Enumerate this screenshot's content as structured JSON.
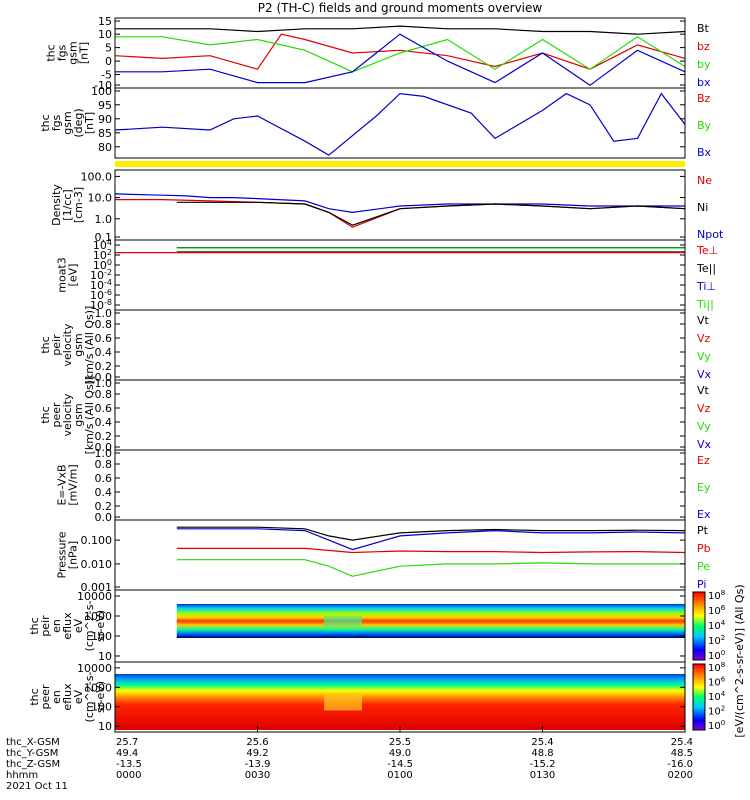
{
  "title": "P2 (TH-C) fields and ground moments overview",
  "colors": {
    "black": "#000000",
    "red": "#e00000",
    "green": "#22dd00",
    "blue": "#0000cc",
    "yellow": "#ffee00"
  },
  "chart_data": [
    {
      "type": "line",
      "ylabel": [
        "thc",
        "fgs",
        "gsm",
        "[nT]"
      ],
      "yticks": [
        15,
        10,
        5,
        0,
        -5,
        -10
      ],
      "ylim": [
        -10,
        16
      ],
      "legend": [
        {
          "name": "Bt",
          "color": "black"
        },
        {
          "name": "bz",
          "color": "red"
        },
        {
          "name": "by",
          "color": "green"
        },
        {
          "name": "bx",
          "color": "blue"
        }
      ],
      "series": [
        {
          "name": "Bt",
          "color": "black",
          "x": [
            0,
            10,
            20,
            30,
            40,
            50,
            60,
            70,
            80,
            90,
            100,
            110,
            120
          ],
          "y": [
            12,
            12,
            12,
            11,
            12,
            12,
            13,
            12,
            12,
            11,
            11,
            10,
            11
          ]
        },
        {
          "name": "bz",
          "color": "red",
          "x": [
            0,
            10,
            20,
            30,
            35,
            40,
            50,
            60,
            70,
            80,
            90,
            100,
            110,
            120
          ],
          "y": [
            2,
            1,
            2,
            -3,
            10,
            8,
            3,
            4,
            2,
            -2,
            3,
            -3,
            6,
            1
          ]
        },
        {
          "name": "by",
          "color": "green",
          "x": [
            0,
            10,
            20,
            30,
            40,
            50,
            60,
            70,
            80,
            90,
            100,
            110,
            120
          ],
          "y": [
            9,
            9,
            6,
            8,
            4,
            -4,
            3,
            8,
            -3,
            8,
            -3,
            9,
            -2
          ]
        },
        {
          "name": "bx",
          "color": "blue",
          "x": [
            0,
            10,
            20,
            30,
            40,
            50,
            60,
            70,
            80,
            90,
            100,
            110,
            120
          ],
          "y": [
            -4,
            -4,
            -3,
            -8,
            -8,
            -4,
            10,
            0,
            -8,
            3,
            -9,
            4,
            -4
          ]
        }
      ]
    },
    {
      "type": "line",
      "ylabel": [
        "thc",
        "fgs",
        "gsm",
        "(deg)",
        "[nT]"
      ],
      "yticks": [
        100,
        95,
        90,
        85,
        80
      ],
      "ylim": [
        76,
        101
      ],
      "legend": [
        {
          "name": "Bz",
          "color": "red"
        },
        {
          "name": "By",
          "color": "green"
        },
        {
          "name": "Bx",
          "color": "blue"
        }
      ],
      "series": [
        {
          "name": "Bx",
          "color": "blue",
          "x": [
            0,
            10,
            20,
            25,
            30,
            40,
            45,
            55,
            60,
            65,
            75,
            80,
            90,
            95,
            100,
            105,
            110,
            115,
            120
          ],
          "y": [
            86,
            87,
            86,
            90,
            91,
            82,
            77,
            91,
            99,
            98,
            92,
            83,
            93,
            99,
            95,
            82,
            83,
            99,
            88
          ]
        }
      ]
    },
    {
      "type": "line",
      "ylabel": [
        "Density",
        "[1/cc]",
        "[cm-3]"
      ],
      "yticks": [
        "100.0",
        "10.0",
        "1.0",
        "0.1"
      ],
      "ylog": true,
      "ylim": [
        0.1,
        200
      ],
      "legend": [
        {
          "name": "Ne",
          "color": "red"
        },
        {
          "name": "Ni",
          "color": "black"
        },
        {
          "name": "Npot",
          "color": "blue"
        }
      ],
      "series": [
        {
          "name": "Npot",
          "color": "blue",
          "x": [
            0,
            10,
            15,
            20,
            25,
            30,
            40,
            45,
            50,
            60,
            70,
            80,
            90,
            100,
            110,
            120
          ],
          "y": [
            15,
            13,
            12,
            10,
            10,
            9,
            7,
            3,
            2,
            4,
            5,
            5,
            5,
            4,
            4,
            4
          ]
        },
        {
          "name": "Ne",
          "color": "red",
          "x": [
            0,
            10,
            20,
            30,
            40,
            45,
            50,
            60,
            70,
            80,
            90,
            100,
            110,
            120
          ],
          "y": [
            8,
            8,
            7,
            6,
            5,
            2,
            0.4,
            3,
            4,
            5,
            4,
            3,
            4,
            3
          ]
        },
        {
          "name": "Ni",
          "color": "black",
          "x": [
            13,
            20,
            30,
            40,
            45,
            50,
            60,
            70,
            80,
            90,
            100,
            110,
            120
          ],
          "y": [
            6,
            6,
            6,
            5,
            2,
            0.5,
            3,
            4,
            5,
            4,
            3,
            4,
            3
          ]
        }
      ]
    },
    {
      "type": "line",
      "ylabel": [
        "moat3",
        "[eV]"
      ],
      "yticks": [
        "10^4",
        "10^2",
        "10^0",
        "10^-2",
        "10^-4",
        "10^-6",
        "10^-8"
      ],
      "ylog": true,
      "ylim": [
        1e-09,
        100000.0
      ],
      "legend": [
        {
          "name": "Te⊥",
          "color": "red"
        },
        {
          "name": "Te||",
          "color": "black"
        },
        {
          "name": "Ti⊥",
          "color": "blue"
        },
        {
          "name": "Ti||",
          "color": "green"
        }
      ],
      "series": [
        {
          "name": "Ti⊥",
          "color": "blue",
          "x": [
            13,
            120
          ],
          "y": [
            3000,
            3000
          ]
        },
        {
          "name": "Ti||",
          "color": "green",
          "x": [
            13,
            120
          ],
          "y": [
            2500,
            2500
          ]
        },
        {
          "name": "Te||",
          "color": "black",
          "x": [
            13,
            120
          ],
          "y": [
            400,
            400
          ]
        },
        {
          "name": "Te⊥",
          "color": "red",
          "x": [
            0,
            120
          ],
          "y": [
            300,
            300
          ]
        }
      ]
    },
    {
      "type": "line",
      "ylabel": [
        "thc",
        "peir",
        "velocity",
        "gsm",
        "[km/s (All Qs)]"
      ],
      "yticks": [
        "1.0",
        "0.8",
        "0.6",
        "0.4",
        "0.2",
        "0.0"
      ],
      "ylim": [
        0,
        1
      ],
      "legend": [
        {
          "name": "Vt",
          "color": "black"
        },
        {
          "name": "Vz",
          "color": "red"
        },
        {
          "name": "Vy",
          "color": "green"
        },
        {
          "name": "Vx",
          "color": "blue"
        }
      ],
      "series": []
    },
    {
      "type": "line",
      "ylabel": [
        "thc",
        "peer",
        "velocity",
        "gsm",
        "[km/s (All Qs)]"
      ],
      "yticks": [
        "1.0",
        "0.8",
        "0.6",
        "0.4",
        "0.2",
        "0.0"
      ],
      "ylim": [
        0,
        1
      ],
      "legend": [
        {
          "name": "Vt",
          "color": "black"
        },
        {
          "name": "Vz",
          "color": "red"
        },
        {
          "name": "Vy",
          "color": "green"
        },
        {
          "name": "Vx",
          "color": "blue"
        }
      ],
      "series": []
    },
    {
      "type": "line",
      "ylabel": [
        "E=-VxB",
        "[mV/m]"
      ],
      "yticks": [
        "1.0",
        "0.8",
        "0.6",
        "0.4",
        "0.2",
        "0.0"
      ],
      "ylim": [
        0,
        1
      ],
      "legend": [
        {
          "name": "Ez",
          "color": "red"
        },
        {
          "name": "Ey",
          "color": "green"
        },
        {
          "name": "Ex",
          "color": "blue"
        }
      ],
      "series": []
    },
    {
      "type": "line",
      "ylabel": [
        "Pressure",
        "[nPa]"
      ],
      "yticks": [
        "0.100",
        "0.010",
        "0.001"
      ],
      "ylog": true,
      "ylim": [
        0.0008,
        0.7
      ],
      "legend": [
        {
          "name": "Pt",
          "color": "black"
        },
        {
          "name": "Pb",
          "color": "red"
        },
        {
          "name": "Pe",
          "color": "green"
        },
        {
          "name": "Pi",
          "color": "blue"
        }
      ],
      "series": [
        {
          "name": "Pb",
          "color": "red",
          "x": [
            13,
            30,
            40,
            50,
            60,
            70,
            80,
            90,
            100,
            110,
            120
          ],
          "y": [
            0.045,
            0.045,
            0.045,
            0.03,
            0.035,
            0.033,
            0.033,
            0.03,
            0.032,
            0.033,
            0.03
          ]
        },
        {
          "name": "Pe",
          "color": "green",
          "x": [
            13,
            30,
            40,
            45,
            50,
            60,
            70,
            80,
            90,
            100,
            110,
            120
          ],
          "y": [
            0.015,
            0.015,
            0.015,
            0.008,
            0.003,
            0.008,
            0.01,
            0.01,
            0.011,
            0.01,
            0.01,
            0.01
          ]
        },
        {
          "name": "Pi",
          "color": "blue",
          "x": [
            13,
            30,
            40,
            45,
            50,
            60,
            70,
            80,
            90,
            100,
            110,
            120
          ],
          "y": [
            0.3,
            0.3,
            0.25,
            0.1,
            0.04,
            0.15,
            0.2,
            0.25,
            0.2,
            0.2,
            0.22,
            0.2
          ]
        },
        {
          "name": "Pt",
          "color": "black",
          "x": [
            13,
            30,
            40,
            45,
            50,
            60,
            70,
            80,
            90,
            100,
            110,
            120
          ],
          "y": [
            0.35,
            0.35,
            0.3,
            0.15,
            0.1,
            0.2,
            0.25,
            0.28,
            0.25,
            0.25,
            0.26,
            0.25
          ]
        }
      ]
    },
    {
      "type": "heatmap",
      "ylabel": [
        "thc",
        "peir",
        "en",
        "eflux",
        "eV",
        "(cm^2-s-",
        "sr-eV)"
      ],
      "yticks": [
        "10000",
        "1000",
        "100",
        "10"
      ],
      "ylog": true,
      "ylim": [
        5,
        20000
      ],
      "colorbar_ticks": [
        "10^8",
        "10^6",
        "10^4",
        "10^2",
        "10^0"
      ],
      "colorbar_label": "[eV/(cm^2-s-sr-eV)] (All Qs)"
    },
    {
      "type": "heatmap",
      "ylabel": [
        "thc",
        "peer",
        "en",
        "eflux",
        "eV",
        "(cm^2-s-",
        "sr-eV)"
      ],
      "yticks": [
        "10000",
        "1000",
        "100",
        "10"
      ],
      "ylog": true,
      "ylim": [
        5,
        20000
      ],
      "colorbar_ticks": [
        "10^8",
        "10^6",
        "10^4",
        "10^2",
        "10^0"
      ],
      "colorbar_label": "[eV/(cm^2-s-sr-eV)] (All Qs)"
    }
  ],
  "xaxis": {
    "rows": [
      {
        "label": "thc_X-GSM",
        "values": [
          "25.7",
          "25.6",
          "25.5",
          "25.4",
          "25.4"
        ]
      },
      {
        "label": "thc_Y-GSM",
        "values": [
          "49.4",
          "49.2",
          "49.0",
          "48.8",
          "48.5"
        ]
      },
      {
        "label": "thc_Z-GSM",
        "values": [
          "-13.5",
          "-13.9",
          "-14.5",
          "-15.2",
          "-16.0"
        ]
      },
      {
        "label": "hhmm",
        "values": [
          "0000",
          "0030",
          "0100",
          "0130",
          "0200"
        ]
      }
    ],
    "date": "2021 Oct 11",
    "xlim": [
      0,
      120
    ]
  }
}
